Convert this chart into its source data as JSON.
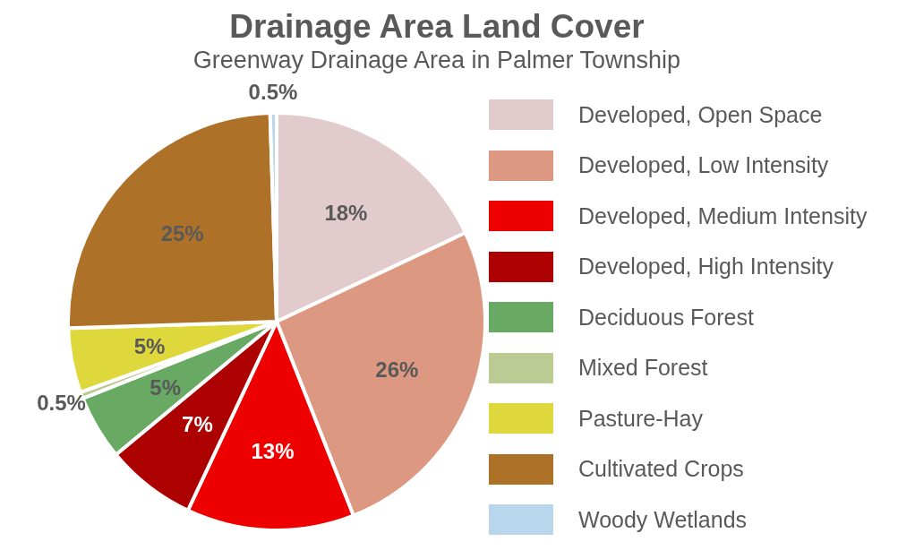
{
  "chart_data": {
    "type": "pie",
    "title": "Drainage Area Land Cover",
    "subtitle": "Greenway Drainage Area in Palmer Township",
    "categories": [
      "Developed, Open Space",
      "Developed, Low Intensity",
      "Developed, Medium Intensity",
      "Developed, High Intensity",
      "Deciduous Forest",
      "Mixed Forest",
      "Pasture-Hay",
      "Cultivated Crops",
      "Woody Wetlands"
    ],
    "values": [
      18,
      26,
      13,
      7,
      5,
      0.5,
      5,
      25,
      0.5
    ],
    "value_labels": [
      "18%",
      "26%",
      "13%",
      "7%",
      "5%",
      "0.5%",
      "5%",
      "25%",
      "0.5%"
    ],
    "colors": [
      "#e2cbcc",
      "#dc9880",
      "#ee0000",
      "#ad0000",
      "#68aa64",
      "#bccb94",
      "#dfd83c",
      "#ae7128",
      "#b8d6ec"
    ],
    "legend": "right"
  }
}
